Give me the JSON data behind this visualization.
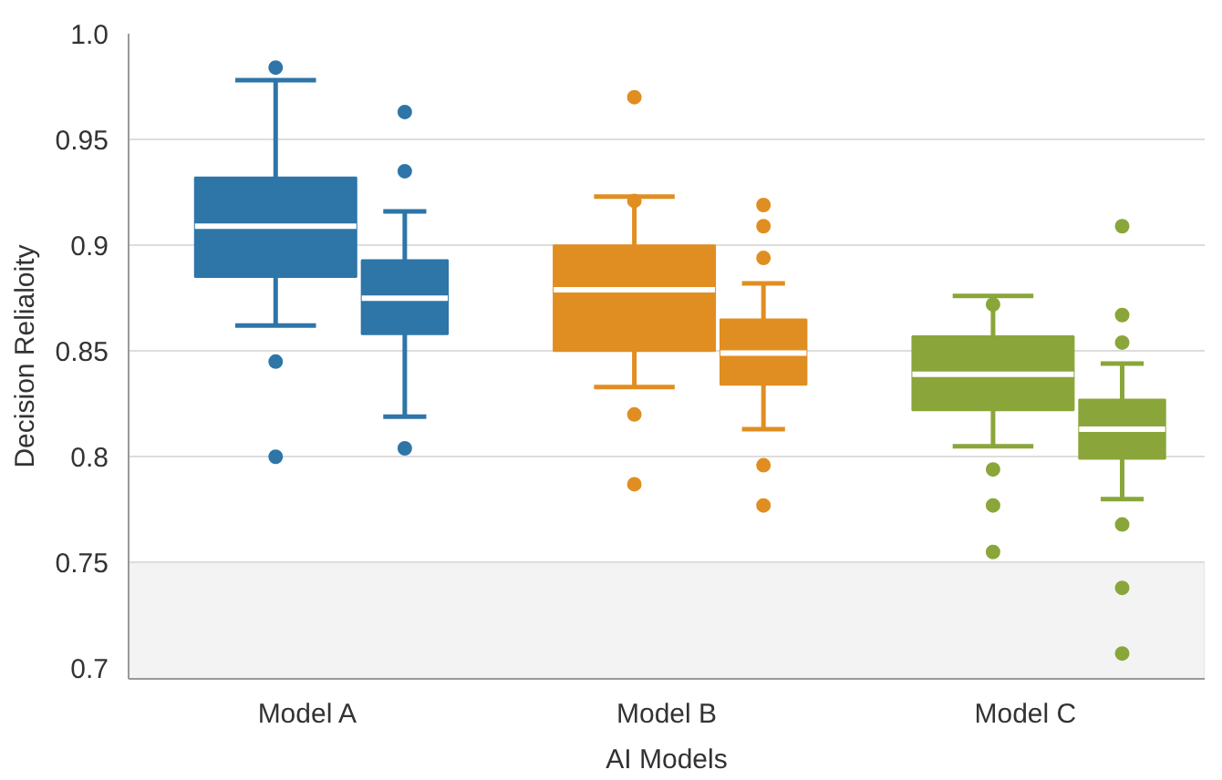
{
  "chart_data": {
    "type": "box",
    "xlabel": "AI Models",
    "ylabel": "Decision Relialoity",
    "categories": [
      "Model A",
      "Model B",
      "Model C"
    ],
    "ylim": [
      0.695,
      1.0
    ],
    "yticks": [
      {
        "value": 1.0,
        "label": "1.0"
      },
      0.95,
      {
        "value": 0.9,
        "label": "0.9"
      },
      0.85,
      {
        "value": 0.8,
        "label": "0.8"
      },
      0.75,
      {
        "value": 0.7,
        "label": "0.7"
      }
    ],
    "grid": "y",
    "bands": [
      {
        "axis": "y",
        "from": 0.695,
        "to": 0.75,
        "color": "#f3f3f3"
      }
    ],
    "series": [
      {
        "colors": [
          "#2e75a8",
          "#e08e22",
          "#8aa63a"
        ],
        "boxes": [
          {
            "low": 0.862,
            "q1": 0.885,
            "median": 0.909,
            "q3": 0.932,
            "high": 0.978,
            "outliers": [
              0.984,
              0.845,
              0.8
            ]
          },
          {
            "low": 0.833,
            "q1": 0.85,
            "median": 0.879,
            "q3": 0.9,
            "high": 0.923,
            "outliers": [
              0.97,
              0.921,
              0.82,
              0.787
            ]
          },
          {
            "low": 0.805,
            "q1": 0.822,
            "median": 0.839,
            "q3": 0.857,
            "high": 0.876,
            "outliers": [
              0.872,
              0.794,
              0.777,
              0.755
            ]
          }
        ]
      },
      {
        "colors": [
          "#2e75a8",
          "#e08e22",
          "#8aa63a"
        ],
        "boxes": [
          {
            "low": 0.819,
            "q1": 0.858,
            "median": 0.875,
            "q3": 0.893,
            "high": 0.916,
            "outliers": [
              0.963,
              0.935,
              0.804
            ]
          },
          {
            "low": 0.813,
            "q1": 0.834,
            "median": 0.849,
            "q3": 0.865,
            "high": 0.882,
            "outliers": [
              0.919,
              0.909,
              0.894,
              0.796,
              0.777
            ]
          },
          {
            "low": 0.78,
            "q1": 0.799,
            "median": 0.813,
            "q3": 0.827,
            "high": 0.844,
            "outliers": [
              0.909,
              0.867,
              0.854,
              0.768,
              0.738,
              0.707
            ]
          }
        ]
      }
    ]
  }
}
